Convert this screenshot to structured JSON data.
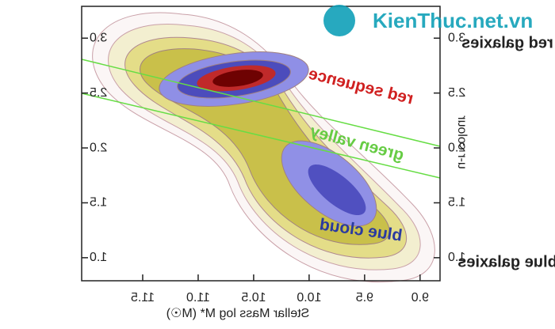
{
  "chart_data": {
    "type": "contour",
    "x_label": "Stellar Mass log M* (M☉)",
    "y_label": "u-r colour",
    "xlim": [
      8.82,
      12.05
    ],
    "ylim": [
      0.79,
      3.29
    ],
    "xticks": [
      {
        "value": 9.0,
        "label": "9.0"
      },
      {
        "value": 9.5,
        "label": "9.5"
      },
      {
        "value": 10.0,
        "label": "10.0"
      },
      {
        "value": 10.5,
        "label": "10.5"
      },
      {
        "value": 11.0,
        "label": "11.0"
      },
      {
        "value": 11.5,
        "label": "11.5"
      }
    ],
    "yticks": [
      {
        "value": 1.0,
        "label": "1.0"
      },
      {
        "value": 1.5,
        "label": "1.5"
      },
      {
        "value": 2.0,
        "label": "2.0"
      },
      {
        "value": 2.5,
        "label": "2.5"
      },
      {
        "value": 3.0,
        "label": "3.0"
      }
    ],
    "mirrored": true,
    "annotations": {
      "red_sequence": "red sequence",
      "green_valley": "green valley",
      "blue_cloud": "blue cloud",
      "red_galaxies": "red galaxies",
      "blue_galaxies": "blue galaxies"
    },
    "watermark": "KienThuc.net.vn"
  }
}
